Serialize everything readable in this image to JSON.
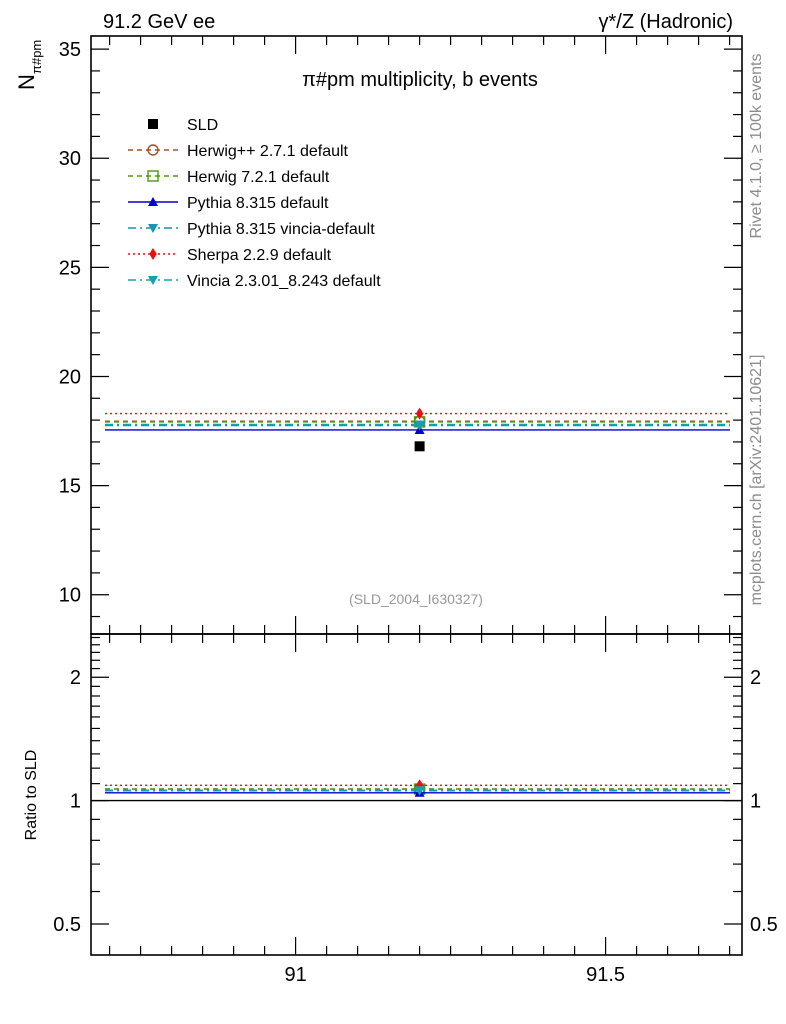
{
  "header": {
    "left": "91.2 GeV ee",
    "right": "γ*/Z (Hadronic)"
  },
  "side_labels": {
    "rivet": "Rivet 4.1.0, ≥ 100k events",
    "mcplots": "mcplots.cern.ch [arXiv:2401.10621]"
  },
  "chart_data": [
    {
      "type": "line",
      "panel": "main",
      "title": "π#pm multiplicity, b events",
      "ylabel": "N",
      "ylabel_sub": "π#pm",
      "xlabel": "",
      "watermark": "(SLD_2004_I630327)",
      "xlim": [
        90.67,
        91.72
      ],
      "ylim": [
        8.2,
        35.6
      ],
      "xticks": [
        {
          "value": 91.0,
          "label": "91"
        },
        {
          "value": 91.5,
          "label": "91.5"
        }
      ],
      "yticks": [
        {
          "value": 10,
          "label": "10"
        },
        {
          "value": 15,
          "label": "15"
        },
        {
          "value": 20,
          "label": "20"
        },
        {
          "value": 25,
          "label": "25"
        },
        {
          "value": 30,
          "label": "30"
        },
        {
          "value": 35,
          "label": "35"
        }
      ],
      "legend_position": "top-left",
      "data": {
        "name": "SLD",
        "x": 91.2,
        "y": 16.8,
        "marker": "square",
        "color": "#000000"
      },
      "series": [
        {
          "name": "Herwig++ 2.7.1 default",
          "value": 17.95,
          "color": "#a0522d",
          "dash": "5,4",
          "marker": "circle-open"
        },
        {
          "name": "Herwig 7.2.1 default",
          "value": 17.92,
          "color": "#4a9a0a",
          "dash": "5,4",
          "marker": "square-open"
        },
        {
          "name": "Pythia 8.315 default",
          "value": 17.55,
          "color": "#0000cc",
          "dash": "",
          "marker": "triangle-up"
        },
        {
          "name": "Pythia 8.315 vincia-default",
          "value": 17.75,
          "color": "#1496b4",
          "dash": "8,4,2,4",
          "marker": "triangle-down"
        },
        {
          "name": "Sherpa 2.2.9 default",
          "value": 18.3,
          "color": "#e81010",
          "dash": "2,3",
          "marker": "diamond"
        },
        {
          "name": "Vincia 2.3.01_8.243 default",
          "value": 17.8,
          "color": "#14a0b4",
          "dash": "8,4,2,4",
          "marker": "triangle-down"
        }
      ]
    },
    {
      "type": "line",
      "panel": "ratio",
      "ylabel": "Ratio to SLD",
      "xlim": [
        90.67,
        91.72
      ],
      "ylim": [
        0.42,
        2.55
      ],
      "yscale": "log",
      "yticks": [
        {
          "value": 0.5,
          "label": "0.5"
        },
        {
          "value": 1,
          "label": "1"
        },
        {
          "value": 2,
          "label": "2"
        }
      ],
      "reference": 1.0,
      "series": [
        {
          "name": "Herwig++ 2.7.1 default",
          "value": 1.068
        },
        {
          "name": "Herwig 7.2.1 default",
          "value": 1.067
        },
        {
          "name": "Pythia 8.315 default",
          "value": 1.045
        },
        {
          "name": "Pythia 8.315 vincia-default",
          "value": 1.057
        },
        {
          "name": "Sherpa 2.2.9 default",
          "value": 1.09
        },
        {
          "name": "Vincia 2.3.01_8.243 default",
          "value": 1.06
        }
      ]
    }
  ]
}
